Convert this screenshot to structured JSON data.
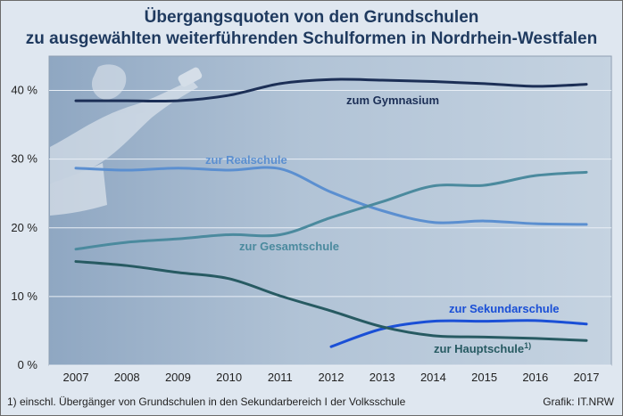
{
  "title_line1": "Übergangsquoten von den Grundschulen",
  "title_line2": "zu ausgewählten weiterführenden Schulformen in Nordrhein-Westfalen",
  "footnote": "1) einschl. Übergänger von Grundschulen in den Sekundarbereich I der Volksschule",
  "source": "Grafik: IT.NRW",
  "chart_data": {
    "type": "line",
    "title": "Übergangsquoten von den Grundschulen zu ausgewählten weiterführenden Schulformen in Nordrhein-Westfalen",
    "x": [
      2007,
      2008,
      2009,
      2010,
      2011,
      2012,
      2013,
      2014,
      2015,
      2016,
      2017
    ],
    "x_tick_labels": [
      "2007",
      "2008",
      "2009",
      "2010",
      "2011",
      "2012",
      "2013",
      "2014",
      "2015",
      "2016",
      "2017"
    ],
    "y_tick_labels": [
      "0 %",
      "10 %",
      "20 %",
      "30 %",
      "40 %"
    ],
    "ylim": [
      0,
      45
    ],
    "grid": "horizontal",
    "series": [
      {
        "name": "zum Gymnasium",
        "color": "#1c2f56",
        "values": [
          38.5,
          38.5,
          38.5,
          39.3,
          41.0,
          41.6,
          41.5,
          41.3,
          41.0,
          40.6,
          40.9
        ]
      },
      {
        "name": "zur Realschule",
        "color": "#5b8fd0",
        "values": [
          28.7,
          28.4,
          28.7,
          28.4,
          28.6,
          25.2,
          22.5,
          20.8,
          21.0,
          20.6,
          20.5
        ]
      },
      {
        "name": "zur Gesamtschule",
        "color": "#4b8a9e",
        "values": [
          16.9,
          17.9,
          18.4,
          19.0,
          19.0,
          21.5,
          23.8,
          26.1,
          26.2,
          27.6,
          28.1
        ]
      },
      {
        "name": "zur Sekundarschule",
        "color": "#1a4fd6",
        "values": [
          null,
          null,
          null,
          null,
          null,
          2.7,
          5.3,
          6.4,
          6.4,
          6.5,
          6.0
        ]
      },
      {
        "name": "zur Hauptschule",
        "name_sup": "1)",
        "color": "#275a62",
        "values": [
          15.1,
          14.5,
          13.5,
          12.6,
          10.1,
          7.9,
          5.6,
          4.3,
          4.1,
          3.9,
          3.6
        ]
      }
    ]
  }
}
